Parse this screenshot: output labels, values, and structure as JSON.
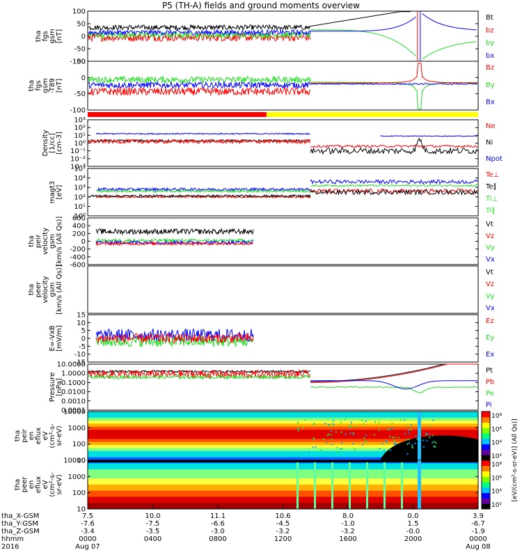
{
  "title": "P5 (TH-A) fields and ground moments overview",
  "colors": {
    "black": "#000000",
    "red": "#ff0000",
    "green": "#22dd22",
    "blue": "#0000ff",
    "yellow": "#ffff00"
  },
  "status_bar": {
    "red_until_fraction": 0.458,
    "red_color": "#ff0000",
    "rest_color": "#ffff00"
  },
  "panels": [
    {
      "id": "fgs_gsm",
      "ylabel": [
        "tha",
        "fgs",
        "gsm",
        "[nT]"
      ],
      "ticks": [
        "100",
        "50",
        "0",
        "-50",
        "-100"
      ],
      "ymin": -100,
      "ymax": 100,
      "scale": "linear",
      "legend": [
        {
          "text": "Bt",
          "color": "#000000"
        },
        {
          "text": "bz",
          "color": "#ff0000"
        },
        {
          "text": "by",
          "color": "#22dd22"
        },
        {
          "text": "bx",
          "color": "#0000ff"
        }
      ]
    },
    {
      "id": "fgs_gsm_sub",
      "ylabel": [
        "tha",
        "fgs",
        "gsm",
        "-T89",
        "[nT]"
      ],
      "ticks": [
        "50",
        "0",
        "-50",
        "-100"
      ],
      "ymin": -125,
      "ymax": 100,
      "scale": "linear",
      "legend": [
        {
          "text": "Bz",
          "color": "#ff0000"
        },
        {
          "text": "By",
          "color": "#22dd22"
        },
        {
          "text": "Bx",
          "color": "#0000ff"
        }
      ]
    },
    {
      "id": "density",
      "ylabel": [
        "Density",
        "[1/cc]",
        "[cm-3]"
      ],
      "ticks": [
        "10³",
        "10²",
        "10¹",
        "10⁰",
        "10⁻¹",
        "10⁻²",
        "10⁻³"
      ],
      "ymin": -3,
      "ymax": 3,
      "scale": "log",
      "legend": [
        {
          "text": "Ne",
          "color": "#ff0000"
        },
        {
          "text": "Ni",
          "color": "#000000"
        },
        {
          "text": "Npot",
          "color": "#0000ff"
        }
      ]
    },
    {
      "id": "temp",
      "ylabel": [
        "magt3",
        "[eV]"
      ],
      "ticks": [
        "10⁵",
        "10⁴",
        "10³",
        "10²",
        "10¹",
        "10⁰"
      ],
      "ymin": 0,
      "ymax": 5,
      "scale": "log",
      "legend": [
        {
          "text": "Te⊥",
          "color": "#ff0000"
        },
        {
          "text": "Te∥",
          "color": "#000000"
        },
        {
          "text": "Ti⊥",
          "color": "#22dd22"
        },
        {
          "text": "Ti∥",
          "color": "#22dd22"
        }
      ]
    },
    {
      "id": "peir_vel",
      "ylabel": [
        "tha",
        "peir",
        "velocity",
        "gsm",
        "[km/s (All Qs)]"
      ],
      "ticks": [
        "600",
        "400",
        "200",
        "0",
        "-200",
        "-400",
        "-600"
      ],
      "ymin": -600,
      "ymax": 600,
      "scale": "linear",
      "legend": [
        {
          "text": "Vt",
          "color": "#000000"
        },
        {
          "text": "Vz",
          "color": "#ff0000"
        },
        {
          "text": "Vy",
          "color": "#22dd22"
        },
        {
          "text": "Vx",
          "color": "#0000ff"
        }
      ]
    },
    {
      "id": "peer_vel",
      "ylabel": [
        "tha",
        "peer",
        "velocity",
        "gsm",
        "[km/s (All Qs)]"
      ],
      "ticks": [],
      "ymin": -600,
      "ymax": 600,
      "scale": "linear",
      "legend": [
        {
          "text": "Vt",
          "color": "#000000"
        },
        {
          "text": "Vz",
          "color": "#ff0000"
        },
        {
          "text": "Vy",
          "color": "#22dd22"
        },
        {
          "text": "Vx",
          "color": "#0000ff"
        }
      ]
    },
    {
      "id": "efield",
      "ylabel": [
        "E=-VxB",
        "[mV/m]"
      ],
      "ticks": [
        "15",
        "10",
        "5",
        "0",
        "-5",
        "-10",
        "-15"
      ],
      "ymin": -15,
      "ymax": 15,
      "scale": "linear",
      "legend": [
        {
          "text": "Ez",
          "color": "#ff0000"
        },
        {
          "text": "Ey",
          "color": "#22dd22"
        },
        {
          "text": "Ex",
          "color": "#0000ff"
        }
      ]
    },
    {
      "id": "pressure",
      "ylabel": [
        "Pressure",
        "[nPa]"
      ],
      "ticks": [
        "10.0000",
        "1.0000",
        "0.1000",
        "0.0100",
        "0.0010",
        "0.0001"
      ],
      "ymin": -4,
      "ymax": 1,
      "scale": "log",
      "legend": [
        {
          "text": "Pt",
          "color": "#000000"
        },
        {
          "text": "Pb",
          "color": "#ff0000"
        },
        {
          "text": "Pe",
          "color": "#22dd22"
        },
        {
          "text": "Pi",
          "color": "#0000ff"
        }
      ]
    },
    {
      "id": "peir_en",
      "ylabel": [
        "tha",
        "peir",
        "en",
        "eflux",
        "eV",
        "(cm²-s-",
        "sr-eV)"
      ],
      "ticks": [
        "10000",
        "1000",
        "100",
        "10"
      ],
      "ymin": 1,
      "ymax": 4,
      "scale": "log",
      "spectrogram": true
    },
    {
      "id": "peer_en",
      "ylabel": [
        "tha",
        "peer",
        "en",
        "eflux",
        "eV",
        "(cm²-s-",
        "sr-eV)"
      ],
      "ticks": [
        "10000",
        "1000",
        "100",
        "10"
      ],
      "ymin": 1,
      "ymax": 4,
      "scale": "log",
      "spectrogram": true
    }
  ],
  "colorbar": {
    "label": "[eV/(cm²-s-sr-eV)] (All Qs)]",
    "upper_ticks": [
      "10⁸",
      "10⁶",
      "10⁴",
      "10²"
    ],
    "lower_ticks": [
      "10⁸",
      "10⁶",
      "10⁴",
      "10²"
    ]
  },
  "x_axis": {
    "rows": [
      {
        "label": "tha_X-GSM",
        "values": [
          "7.5",
          "10.0",
          "11.1",
          "10.6",
          "8.0",
          "0.0",
          "3.9"
        ]
      },
      {
        "label": "tha_Y-GSM",
        "values": [
          "-7.6",
          "-7.5",
          "-6.6",
          "-4.5",
          "-1.0",
          "1.5",
          "-6.7"
        ]
      },
      {
        "label": "tha_Z-GSM",
        "values": [
          "-3.4",
          "-3.5",
          "-3.0",
          "-3.2",
          "-3.2",
          "-0.0",
          "-1.9"
        ]
      },
      {
        "label": "hhmm",
        "values": [
          "0000",
          "0400",
          "0800",
          "1200",
          "1600",
          "2000",
          "0000"
        ]
      },
      {
        "label": "2016",
        "values": [
          "Aug 07",
          "",
          "",
          "",
          "",
          "",
          "Aug 08"
        ]
      }
    ],
    "tick_count": 7
  }
}
